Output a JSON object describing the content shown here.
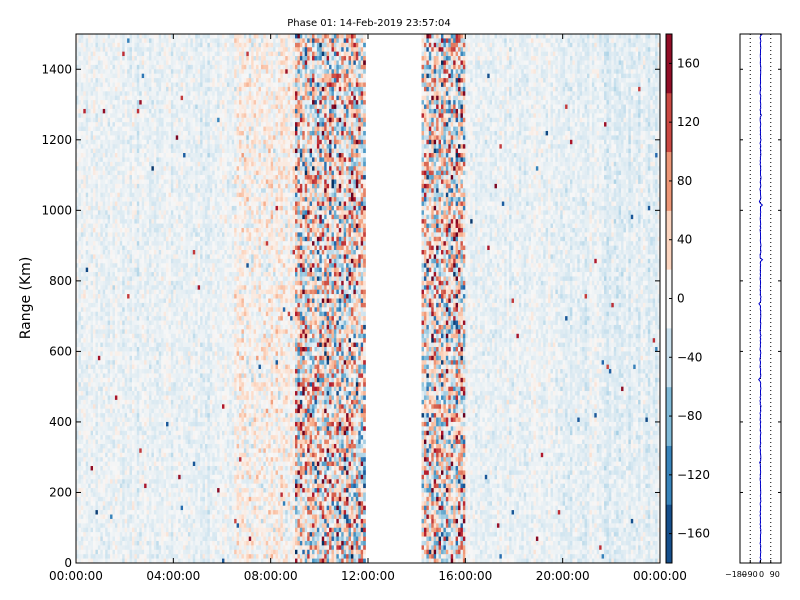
{
  "chart_data": [
    {
      "type": "heatmap",
      "title": "Phase 01: 14-Feb-2019 23:57:04",
      "xlabel": "",
      "ylabel": "Range (Km)",
      "x_ticks": [
        "00:00:00",
        "04:00:00",
        "08:00:00",
        "12:00:00",
        "16:00:00",
        "20:00:00",
        "00:00:00"
      ],
      "x_tick_hours": [
        0,
        4,
        8,
        12,
        16,
        20,
        24
      ],
      "xlim_hours": [
        0,
        24
      ],
      "y_ticks": [
        0,
        200,
        400,
        600,
        800,
        1000,
        1200,
        1400
      ],
      "ylim": [
        0,
        1500
      ],
      "no_data_interval_hours": [
        11.9,
        14.2
      ],
      "colorbar": {
        "colormap": "RdBu_r",
        "range": [
          -180,
          180
        ],
        "ticks": [
          -160,
          -120,
          -80,
          -40,
          0,
          40,
          80,
          120,
          160
        ]
      },
      "high_variability_bands_hours": [
        [
          9.0,
          11.9
        ],
        [
          14.2,
          16.0
        ]
      ]
    },
    {
      "type": "line",
      "xlim": [
        -180,
        180
      ],
      "x_ticks": [
        "-180",
        "-90",
        "0",
        "90"
      ],
      "ylim": [
        0,
        1500
      ],
      "series_mean_x": 0,
      "grid": "dotted vertical lines at -90, 0, 90"
    }
  ]
}
